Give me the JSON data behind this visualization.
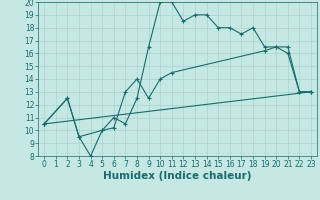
{
  "xlabel": "Humidex (Indice chaleur)",
  "bg_color": "#c5e8e5",
  "line_color": "#1a6b6b",
  "grid_color": "#a8d4d0",
  "xlim": [
    -0.5,
    23.5
  ],
  "ylim": [
    8,
    20
  ],
  "xticks": [
    0,
    1,
    2,
    3,
    4,
    5,
    6,
    7,
    8,
    9,
    10,
    11,
    12,
    13,
    14,
    15,
    16,
    17,
    18,
    19,
    20,
    21,
    22,
    23
  ],
  "yticks": [
    8,
    9,
    10,
    11,
    12,
    13,
    14,
    15,
    16,
    17,
    18,
    19,
    20
  ],
  "line1_x": [
    0,
    2,
    3,
    4,
    5,
    6,
    7,
    8,
    9,
    10,
    11,
    12,
    13,
    14,
    15,
    16,
    17,
    18,
    19,
    20,
    21,
    22,
    23
  ],
  "line1_y": [
    10.5,
    12.5,
    9.5,
    8.0,
    10.0,
    11.0,
    10.5,
    12.5,
    16.5,
    20.0,
    20.0,
    18.5,
    19.0,
    19.0,
    18.0,
    18.0,
    17.5,
    18.0,
    16.5,
    16.5,
    16.0,
    13.0,
    13.0
  ],
  "line2_x": [
    0,
    2,
    3,
    5,
    6,
    7,
    8,
    9,
    10,
    11,
    19,
    20,
    21,
    22,
    23
  ],
  "line2_y": [
    10.5,
    12.5,
    9.5,
    10.0,
    10.2,
    13.0,
    14.0,
    12.5,
    14.0,
    14.5,
    16.2,
    16.5,
    16.5,
    13.0,
    13.0
  ],
  "line3_x": [
    0,
    23
  ],
  "line3_y": [
    10.5,
    13.0
  ],
  "marker": "+",
  "markersize": 3,
  "linewidth": 0.8,
  "xlabel_fontsize": 7.5,
  "tick_fontsize": 5.5
}
